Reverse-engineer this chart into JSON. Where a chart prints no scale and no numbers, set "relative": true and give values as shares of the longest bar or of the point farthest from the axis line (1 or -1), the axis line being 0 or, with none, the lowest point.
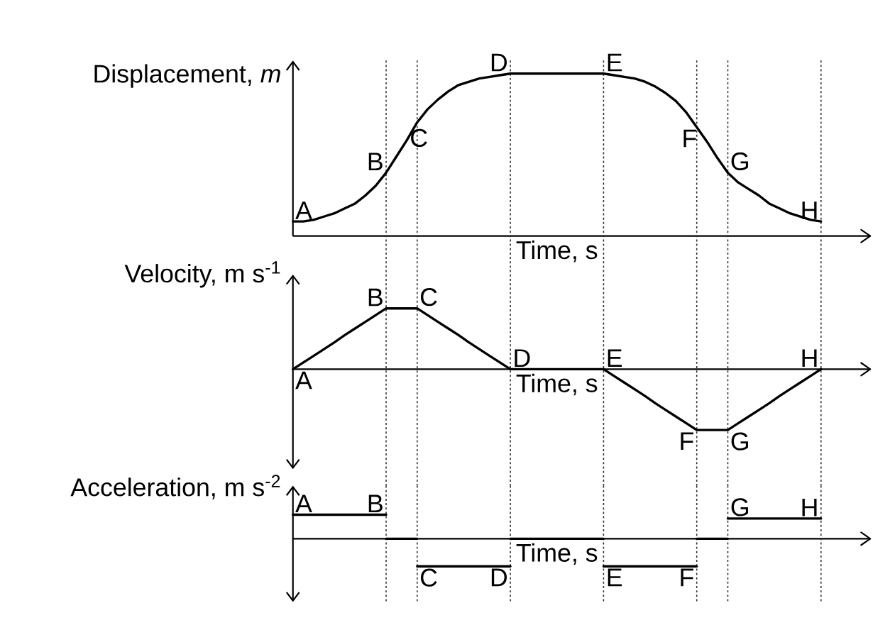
{
  "chart_data": [
    {
      "type": "line",
      "xlabel": "Time, s",
      "ylabel": "Displacement, *m*",
      "relative": true,
      "grid": "x",
      "color": "#000000",
      "categories": [
        null,
        null,
        null,
        null,
        null,
        null,
        null,
        null,
        null,
        null,
        null,
        null,
        null,
        null,
        null,
        null,
        null,
        null,
        null,
        null,
        null,
        null,
        null,
        null,
        null,
        null,
        null,
        null,
        null,
        null,
        null,
        null,
        null,
        null,
        null,
        null,
        null,
        null,
        null,
        null,
        null,
        null,
        null,
        null,
        null,
        null,
        null,
        null,
        null,
        null,
        null,
        null
      ],
      "values": [
        0.09,
        0.09,
        0.1,
        0.12,
        0.14,
        0.17,
        0.2,
        0.25,
        0.31,
        0.39,
        0.49,
        0.59,
        0.7,
        0.78,
        0.84,
        0.89,
        0.93,
        0.95,
        0.97,
        0.98,
        0.99,
        1,
        1,
        1,
        1,
        1,
        1,
        1,
        1,
        1,
        1,
        0.99,
        0.98,
        0.97,
        0.95,
        0.92,
        0.88,
        0.83,
        0.76,
        0.67,
        0.58,
        0.48,
        0.39,
        0.33,
        0.29,
        0.25,
        0.2,
        0.17,
        0.14,
        0.12,
        0.1,
        0.09
      ],
      "annotations": [
        {
          "text": "A",
          "y": 0.09
        },
        {
          "text": "B",
          "y": 0.39
        },
        {
          "text": "C",
          "y": 0.7
        },
        {
          "text": "D",
          "y": 1
        },
        {
          "text": "E",
          "y": 1
        },
        {
          "text": "F",
          "y": 0.67
        },
        {
          "text": "G",
          "y": 0.39
        },
        {
          "text": "H",
          "y": 0.09
        }
      ]
    },
    {
      "type": "line",
      "xlabel": "Time, s",
      "ylabel": "Velocity, m s$^{-1}$",
      "relative": true,
      "grid": "x",
      "color": "#000000",
      "categories": [
        null,
        null,
        null,
        null,
        null,
        null,
        null,
        null,
        null,
        null,
        null,
        null,
        null,
        null,
        null,
        null,
        null,
        null,
        null,
        null,
        null,
        null,
        null,
        null,
        null,
        null,
        null,
        null,
        null,
        null,
        null,
        null,
        null,
        null,
        null,
        null,
        null,
        null,
        null,
        null,
        null,
        null,
        null,
        null,
        null,
        null,
        null,
        null,
        null,
        null,
        null,
        null
      ],
      "values": [
        0,
        0.11,
        0.22,
        0.33,
        0.44,
        0.56,
        0.67,
        0.78,
        0.89,
        1,
        1,
        1,
        1,
        0.89,
        0.78,
        0.67,
        0.56,
        0.44,
        0.33,
        0.22,
        0.11,
        0,
        0,
        0,
        0,
        0,
        0,
        0,
        0,
        0,
        0,
        -0.11,
        -0.22,
        -0.33,
        -0.44,
        -0.56,
        -0.67,
        -0.78,
        -0.89,
        -1,
        -1,
        -1,
        -1,
        -0.89,
        -0.78,
        -0.67,
        -0.56,
        -0.44,
        -0.33,
        -0.22,
        -0.11,
        0
      ],
      "annotations": [
        {
          "text": "A",
          "y": 0
        },
        {
          "text": "B",
          "y": 1
        },
        {
          "text": "C",
          "y": 1
        },
        {
          "text": "D",
          "y": 0
        },
        {
          "text": "E",
          "y": 0
        },
        {
          "text": "F",
          "y": -1
        },
        {
          "text": "G",
          "y": -1
        },
        {
          "text": "H",
          "y": 0
        }
      ]
    },
    {
      "type": "line",
      "xlabel": "Time, s",
      "ylabel": "Acceleration, m s$^{-2}$",
      "relative": true,
      "grid": "x",
      "categories": [
        null,
        null,
        null,
        null,
        null,
        null,
        null,
        null,
        null,
        null,
        null,
        null,
        null,
        null,
        null,
        null,
        null,
        null,
        null,
        null,
        null,
        null,
        null,
        null,
        null,
        null,
        null,
        null,
        null,
        null,
        null,
        null,
        null,
        null,
        null,
        null,
        null,
        null,
        null,
        null,
        null,
        null,
        null,
        null,
        null,
        null,
        null,
        null,
        null,
        null,
        null,
        null
      ],
      "series": [
        {
          "color": "#000000",
          "values": [
            0.87,
            0.87,
            0.87,
            0.87,
            0.87,
            0.87,
            0.87,
            0.87,
            0.87,
            0.87,
            null,
            null,
            -1,
            -1,
            -1,
            -1,
            -1,
            -1,
            -1,
            -1,
            -1,
            -1,
            null,
            null,
            null,
            null,
            null,
            null,
            null,
            null,
            -1,
            -1,
            -1,
            -1,
            -1,
            -1,
            -1,
            -1,
            -1,
            -1,
            null,
            null,
            0.73,
            0.73,
            0.73,
            0.73,
            0.73,
            0.73,
            0.73,
            0.73,
            0.73,
            0.73
          ]
        },
        {
          "color": "#000000",
          "values": [
            null,
            null,
            null,
            null,
            null,
            null,
            null,
            null,
            null,
            0,
            0,
            0,
            0,
            null,
            null,
            null,
            null,
            null,
            null,
            null,
            null,
            0,
            0,
            0,
            0,
            0,
            0,
            0,
            0,
            0,
            0,
            null,
            null,
            null,
            null,
            null,
            null,
            null,
            null,
            0,
            0,
            0,
            0,
            null,
            null,
            null,
            null,
            null,
            null,
            null,
            null,
            null
          ]
        }
      ],
      "annotations": [
        {
          "text": "A",
          "y": 0.87
        },
        {
          "text": "B",
          "y": 0.87
        },
        {
          "text": "C",
          "y": -1
        },
        {
          "text": "D",
          "y": -1
        },
        {
          "text": "E",
          "y": -1
        },
        {
          "text": "F",
          "y": -1
        },
        {
          "text": "G",
          "y": 0.73
        },
        {
          "text": "H",
          "y": 0.73
        }
      ]
    }
  ]
}
